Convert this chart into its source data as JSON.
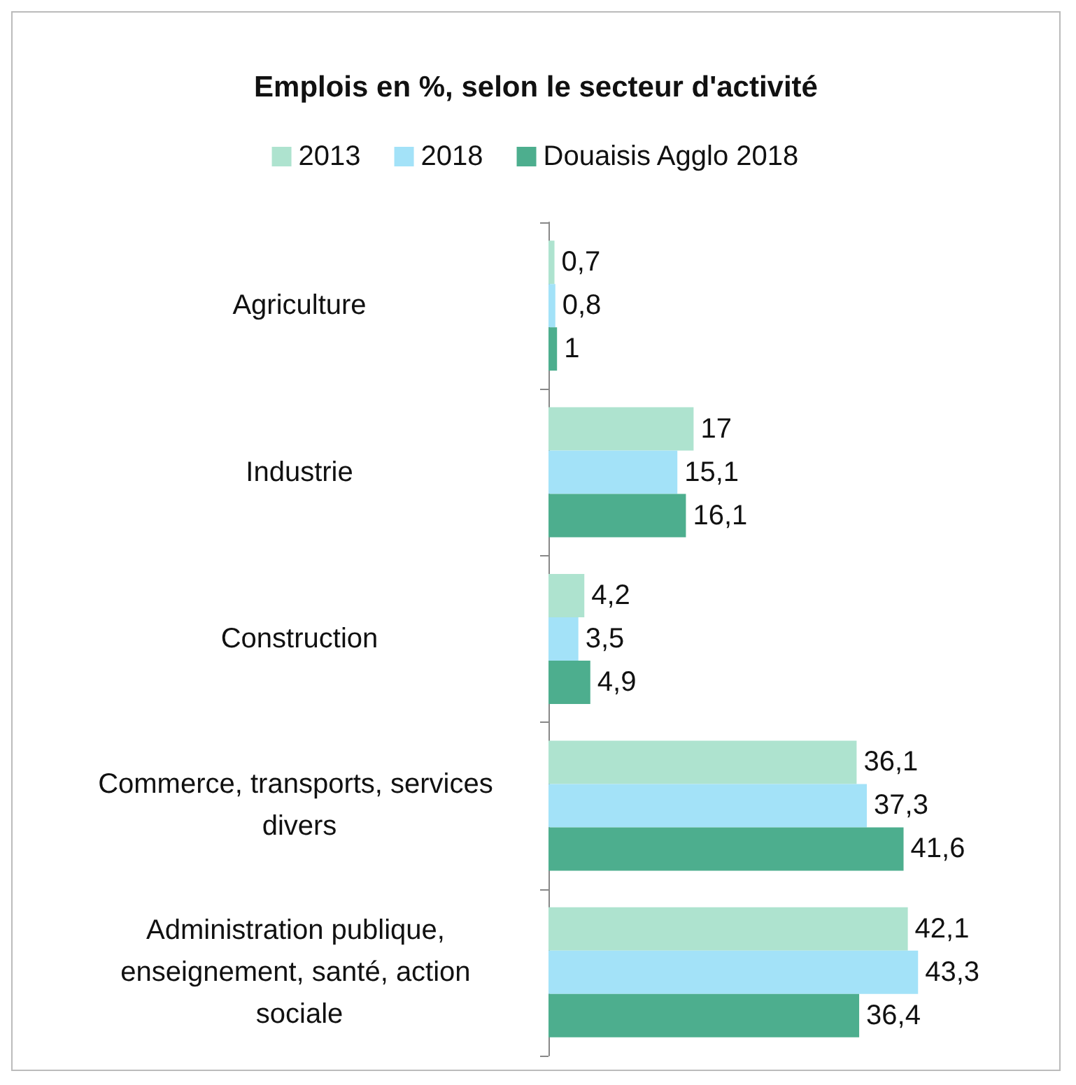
{
  "chart_data": {
    "type": "bar",
    "orientation": "horizontal",
    "title": "Emplois en %, selon le secteur d'activité",
    "categories": [
      "Agriculture",
      "Industrie",
      "Construction",
      "Commerce, transports, services divers",
      "Administration publique, enseignement, santé, action sociale"
    ],
    "series": [
      {
        "name": "2013",
        "color": "#aee3cf",
        "values": [
          0.7,
          17,
          4.2,
          36.1,
          42.1
        ],
        "value_labels": [
          "0,7",
          "17",
          "4,2",
          "36,1",
          "42,1"
        ]
      },
      {
        "name": "2018",
        "color": "#a3e2f8",
        "values": [
          0.8,
          15.1,
          3.5,
          37.3,
          43.3
        ],
        "value_labels": [
          "0,8",
          "15,1",
          "3,5",
          "37,3",
          "43,3"
        ]
      },
      {
        "name": "Douaisis Agglo 2018",
        "color": "#4dae8e",
        "values": [
          1,
          16.1,
          4.9,
          41.6,
          36.4
        ],
        "value_labels": [
          "1",
          "16,1",
          "4,9",
          "41,6",
          "36,4"
        ]
      }
    ],
    "legend": "top",
    "grid": false
  }
}
